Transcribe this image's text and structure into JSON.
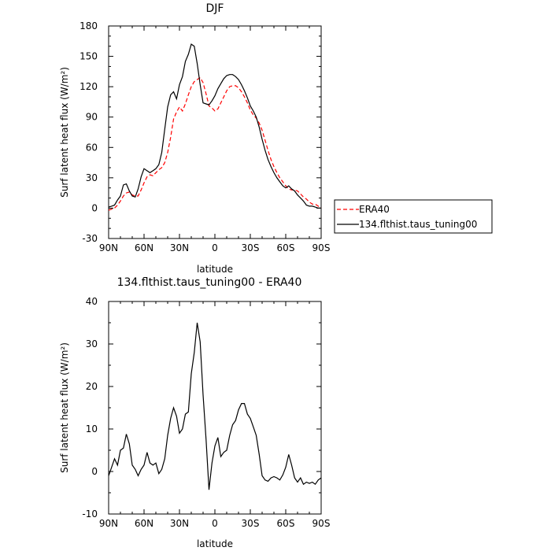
{
  "chart_data": [
    {
      "type": "line",
      "title": "DJF",
      "xlabel": "latitude",
      "ylabel": "Surf latent heat flux (W/m²)",
      "xlim": [
        90,
        -90
      ],
      "ylim": [
        -30,
        180
      ],
      "xticks": [
        90,
        60,
        30,
        0,
        -30,
        -60,
        -90
      ],
      "xtick_labels": [
        "90N",
        "60N",
        "30N",
        "0",
        "30S",
        "60S",
        "90S"
      ],
      "yticks": [
        -30,
        0,
        30,
        60,
        90,
        120,
        150,
        180
      ],
      "ytick_labels": [
        "-30",
        "0",
        "30",
        "60",
        "90",
        "120",
        "150",
        "180"
      ],
      "legend_position": "right",
      "series": [
        {
          "name": "ERA40",
          "color": "#ff0000",
          "dash": true,
          "x": [
            90,
            87.5,
            85,
            82.5,
            80,
            77.5,
            75,
            72.5,
            70,
            67.5,
            65,
            62.5,
            60,
            57.5,
            55,
            52.5,
            50,
            47.5,
            45,
            42.5,
            40,
            37.5,
            35,
            32.5,
            30,
            27.5,
            25,
            22.5,
            20,
            17.5,
            15,
            12.5,
            10,
            7.5,
            5,
            2.5,
            0,
            -2.5,
            -5,
            -7.5,
            -10,
            -12.5,
            -15,
            -17.5,
            -20,
            -22.5,
            -25,
            -27.5,
            -30,
            -32.5,
            -35,
            -37.5,
            -40,
            -42.5,
            -45,
            -47.5,
            -50,
            -52.5,
            -55,
            -57.5,
            -60,
            -62.5,
            -65,
            -67.5,
            -70,
            -72.5,
            -75,
            -77.5,
            -80,
            -82.5,
            -85,
            -87.5,
            -90
          ],
          "y": [
            -2,
            -1,
            0,
            3,
            7,
            12,
            15,
            16,
            13,
            12,
            12,
            18,
            25,
            31,
            33,
            32,
            35,
            38,
            40,
            45,
            55,
            70,
            88,
            95,
            100,
            96,
            103,
            112,
            120,
            125,
            127,
            129,
            124,
            113,
            101,
            99,
            96,
            98,
            104,
            110,
            116,
            120,
            121,
            121,
            119,
            115,
            110,
            104,
            97,
            92,
            89,
            84,
            77,
            67,
            57,
            48,
            41,
            35,
            30,
            26,
            22,
            19,
            18,
            18,
            17,
            14,
            11,
            9,
            6,
            4,
            4,
            2,
            0
          ]
        },
        {
          "name": "134.flthist.taus_tuning00",
          "color": "#000000",
          "dash": false,
          "x": [
            90,
            87.5,
            85,
            82.5,
            80,
            77.5,
            75,
            72.5,
            70,
            67.5,
            65,
            62.5,
            60,
            57.5,
            55,
            52.5,
            50,
            47.5,
            45,
            42.5,
            40,
            37.5,
            35,
            32.5,
            30,
            27.5,
            25,
            22.5,
            20,
            17.5,
            15,
            12.5,
            10,
            7.5,
            5,
            2.5,
            0,
            -2.5,
            -5,
            -7.5,
            -10,
            -12.5,
            -15,
            -17.5,
            -20,
            -22.5,
            -25,
            -27.5,
            -30,
            -32.5,
            -35,
            -37.5,
            -40,
            -42.5,
            -45,
            -47.5,
            -50,
            -52.5,
            -55,
            -57.5,
            -60,
            -62.5,
            -65,
            -67.5,
            -70,
            -72.5,
            -75,
            -77.5,
            -80,
            -82.5,
            -85,
            -87.5,
            -90
          ],
          "y": [
            1,
            2,
            3,
            8,
            12,
            23,
            24,
            17,
            12,
            11,
            19,
            31,
            39,
            37,
            35,
            37,
            39,
            43,
            55,
            78,
            100,
            112,
            115,
            108,
            122,
            130,
            145,
            152,
            162,
            160,
            143,
            122,
            104,
            103,
            102,
            106,
            111,
            118,
            123,
            128,
            131,
            132,
            132,
            130,
            127,
            122,
            116,
            109,
            101,
            96,
            90,
            80,
            68,
            57,
            48,
            41,
            35,
            30,
            26,
            22,
            20,
            22,
            19,
            17,
            13,
            10,
            7,
            3,
            2,
            2,
            1,
            0,
            0
          ]
        }
      ]
    },
    {
      "type": "line",
      "title": "134.flthist.taus_tuning00 - ERA40",
      "xlabel": "latitude",
      "ylabel": "Surf latent heat flux (W/m²)",
      "xlim": [
        90,
        -90
      ],
      "ylim": [
        -10,
        40
      ],
      "xticks": [
        90,
        60,
        30,
        0,
        -30,
        -60,
        -90
      ],
      "xtick_labels": [
        "90N",
        "60N",
        "30N",
        "0",
        "30S",
        "60S",
        "90S"
      ],
      "yticks": [
        -10,
        0,
        10,
        20,
        30,
        40
      ],
      "ytick_labels": [
        "-10",
        "0",
        "10",
        "20",
        "30",
        "40"
      ],
      "series": [
        {
          "color": "#000000",
          "dash": false,
          "x": [
            90,
            87.5,
            85,
            82.5,
            80,
            77.5,
            75,
            72.5,
            70,
            67.5,
            65,
            62.5,
            60,
            57.5,
            55,
            52.5,
            50,
            47.5,
            45,
            42.5,
            40,
            37.5,
            35,
            32.5,
            30,
            27.5,
            25,
            22.5,
            20,
            17.5,
            15,
            12.5,
            10,
            7.5,
            5,
            2.5,
            0,
            -2.5,
            -5,
            -7.5,
            -10,
            -12.5,
            -15,
            -17.5,
            -20,
            -22.5,
            -25,
            -27.5,
            -30,
            -32.5,
            -35,
            -37.5,
            -40,
            -42.5,
            -45,
            -47.5,
            -50,
            -52.5,
            -55,
            -57.5,
            -60,
            -62.5,
            -65,
            -67.5,
            -70,
            -72.5,
            -75,
            -77.5,
            -80,
            -82.5,
            -85,
            -87.5,
            -90
          ],
          "y": [
            -1,
            1,
            3,
            1.5,
            5,
            5.5,
            8.8,
            6.5,
            1.5,
            0.5,
            -1,
            0.5,
            1.5,
            4.5,
            2,
            1.5,
            2,
            -0.5,
            0.5,
            3,
            8.5,
            12.5,
            15,
            13,
            9,
            10,
            13.5,
            14,
            23,
            28,
            35,
            30.5,
            18,
            7.5,
            -4.3,
            2,
            6,
            8,
            3.5,
            4.5,
            5,
            8.5,
            11,
            12,
            14.5,
            16,
            16,
            13.5,
            12.5,
            10.5,
            8.5,
            4,
            -1,
            -2,
            -2.3,
            -1.5,
            -1.2,
            -1.5,
            -2,
            -0.8,
            1,
            4,
            1.5,
            -1.5,
            -2.5,
            -1.5,
            -3,
            -2.5,
            -2.8,
            -2.5,
            -3,
            -2,
            -1.5
          ]
        }
      ]
    }
  ]
}
